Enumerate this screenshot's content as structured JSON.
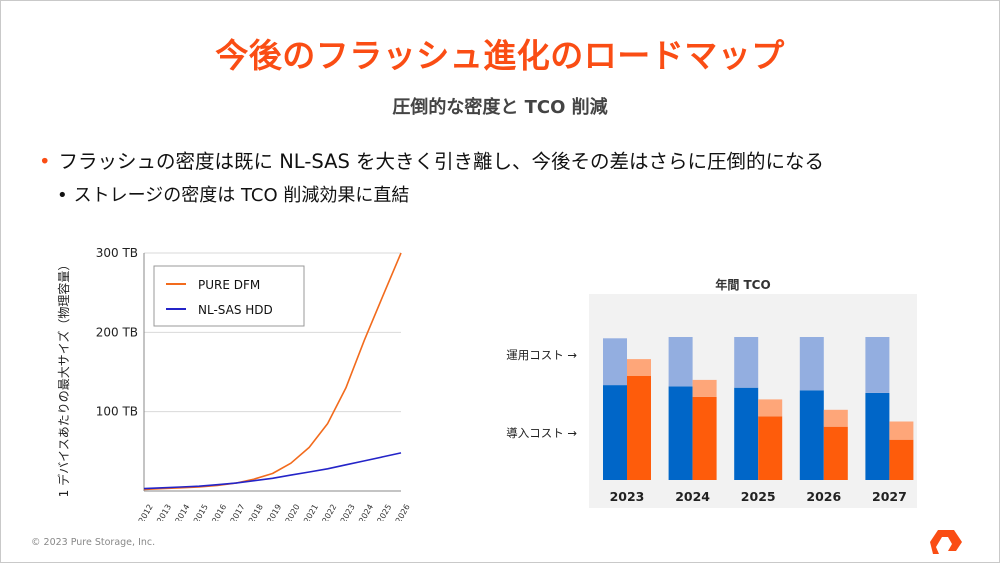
{
  "slide": {
    "title": "今後のフラッシュ進化のロードマップ",
    "subtitle": "圧倒的な密度と TCO 削減",
    "bullets": [
      "フラッシュの密度は既に NL-SAS を大きく引き離し、今後その差はさらに圧倒的になる",
      "ストレージの密度は TCO 削減効果に直結"
    ],
    "bullet_marks": [
      "•",
      "•"
    ],
    "footer": "© 2023  Pure Storage, Inc.",
    "accent_color": "#fa4d14",
    "logo_icon": "pure-storage-logo-icon"
  },
  "chart_data": [
    {
      "type": "line",
      "ylabel": "1 デバイスあたりの最大サイズ（物理容量）",
      "x": [
        "2012",
        "2013",
        "2014",
        "2015",
        "2016",
        "2017",
        "2018",
        "2019",
        "2020",
        "2021",
        "2022",
        "2023",
        "2024",
        "2025",
        "2026"
      ],
      "ylim": [
        0,
        300
      ],
      "yticks": [
        100,
        200,
        300
      ],
      "ytick_labels": [
        "100 TB",
        "200 TB",
        "300 TB"
      ],
      "grid": true,
      "legend": "top-left",
      "series": [
        {
          "name": "PURE DFM",
          "color": "#f26b1d",
          "values": [
            2,
            3,
            4,
            5,
            7,
            10,
            15,
            22,
            35,
            55,
            85,
            130,
            190,
            245,
            300
          ]
        },
        {
          "name": "NL-SAS HDD",
          "color": "#2424c8",
          "values": [
            3,
            4,
            5,
            6,
            8,
            10,
            13,
            16,
            20,
            24,
            28,
            33,
            38,
            43,
            48
          ]
        }
      ]
    },
    {
      "type": "bar",
      "title": "年間 TCO",
      "categories": [
        "2023",
        "2024",
        "2025",
        "2026",
        "2027"
      ],
      "annotations": [
        "運用コスト →",
        "導入コスト →"
      ],
      "series": [
        {
          "color_base": "#0066c8",
          "color_top": "#93aee0",
          "install": [
            73,
            72,
            71,
            69,
            67
          ],
          "opex": [
            36,
            38,
            39,
            41,
            43
          ]
        },
        {
          "color_base": "#fe5c0b",
          "color_top": "#fea679",
          "install": [
            80,
            64,
            49,
            41,
            31
          ],
          "opex": [
            13,
            13,
            13,
            13,
            14
          ]
        }
      ],
      "ylim": [
        0,
        115
      ]
    }
  ]
}
